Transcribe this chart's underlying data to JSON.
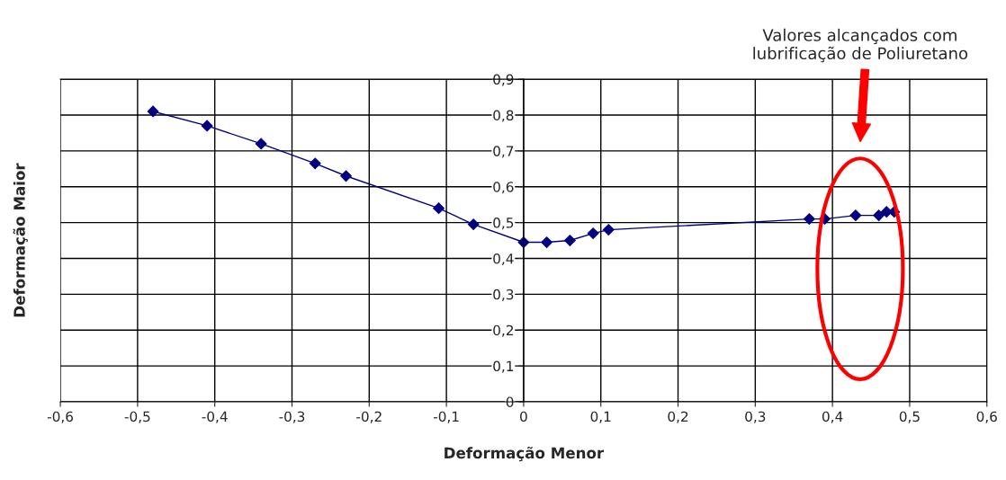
{
  "chart_data": {
    "type": "line",
    "xlabel": "Deformação Menor",
    "ylabel": "Deformação Maior",
    "x": [
      -0.48,
      -0.41,
      -0.34,
      -0.27,
      -0.23,
      -0.11,
      -0.065,
      0,
      0.03,
      0.06,
      0.09,
      0.11,
      0.37,
      0.39,
      0.43,
      0.46,
      0.47,
      0.48
    ],
    "series": [
      {
        "color": "#000080",
        "values": [
          0.81,
          0.77,
          0.72,
          0.665,
          0.63,
          0.54,
          0.495,
          0.445,
          0.445,
          0.45,
          0.47,
          0.48,
          0.51,
          0.51,
          0.52,
          0.52,
          0.53,
          0.53
        ]
      }
    ],
    "xlim": [
      -0.6,
      0.6
    ],
    "ylim": [
      0,
      0.9
    ],
    "xticks": [
      {
        "value": -0.6,
        "label": "-0,6"
      },
      {
        "value": -0.5,
        "label": "-0,5"
      },
      {
        "value": -0.4,
        "label": "-0,4"
      },
      {
        "value": -0.3,
        "label": "-0,3"
      },
      {
        "value": -0.2,
        "label": "-0,2"
      },
      {
        "value": -0.1,
        "label": "-0,1"
      },
      0,
      {
        "value": 0.1,
        "label": "0,1"
      },
      {
        "value": 0.2,
        "label": "0,2"
      },
      {
        "value": 0.3,
        "label": "0,3"
      },
      {
        "value": 0.4,
        "label": "0,4"
      },
      {
        "value": 0.5,
        "label": "0,5"
      },
      {
        "value": 0.6,
        "label": "0,6"
      }
    ],
    "yticks": [
      0,
      {
        "value": 0.1,
        "label": "0,1"
      },
      {
        "value": 0.2,
        "label": "0,2"
      },
      {
        "value": 0.3,
        "label": "0,3"
      },
      {
        "value": 0.4,
        "label": "0,4"
      },
      {
        "value": 0.5,
        "label": "0,5"
      },
      {
        "value": 0.6,
        "label": "0,6"
      },
      {
        "value": 0.7,
        "label": "0,7"
      },
      {
        "value": 0.8,
        "label": "0,8"
      },
      {
        "value": 0.9,
        "label": "0,9"
      }
    ],
    "grid": true,
    "marker": "diamond",
    "line_style": "solid",
    "legend": false,
    "annotations": [
      "Valores alcançados com\nlubrificação de Poliuretano"
    ]
  }
}
